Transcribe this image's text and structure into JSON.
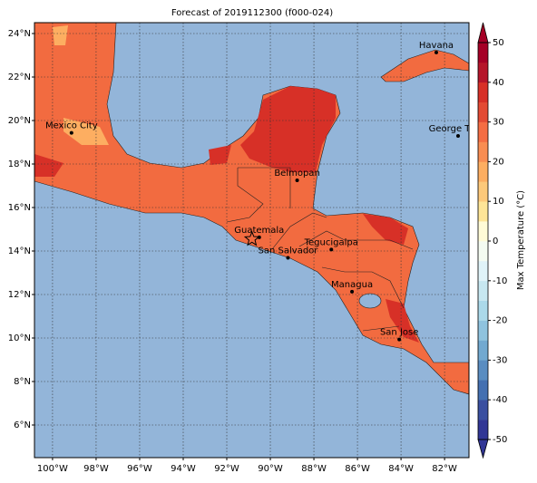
{
  "chart_data": {
    "type": "map",
    "title": "Forecast of 2019112300 (f000-024)",
    "lonlim": [
      -100.83,
      -80.88
    ],
    "latlim": [
      4.5,
      24.5
    ],
    "grid": true,
    "ocean_color": "#93b5d9",
    "xticks": [
      {
        "value": -100,
        "label": "100°W"
      },
      {
        "value": -98,
        "label": "98°W"
      },
      {
        "value": -96,
        "label": "96°W"
      },
      {
        "value": -94,
        "label": "94°W"
      },
      {
        "value": -92,
        "label": "92°W"
      },
      {
        "value": -90,
        "label": "90°W"
      },
      {
        "value": -88,
        "label": "88°W"
      },
      {
        "value": -86,
        "label": "86°W"
      },
      {
        "value": -84,
        "label": "84°W"
      },
      {
        "value": -82,
        "label": "82°W"
      }
    ],
    "yticks": [
      {
        "value": 6,
        "label": "6°N"
      },
      {
        "value": 8,
        "label": "8°N"
      },
      {
        "value": 10,
        "label": "10°N"
      },
      {
        "value": 12,
        "label": "12°N"
      },
      {
        "value": 14,
        "label": "14°N"
      },
      {
        "value": 16,
        "label": "16°N"
      },
      {
        "value": 18,
        "label": "18°N"
      },
      {
        "value": 20,
        "label": "20°N"
      },
      {
        "value": 22,
        "label": "22°N"
      },
      {
        "value": 24,
        "label": "24°N"
      }
    ],
    "cities": [
      {
        "name": "Havana",
        "lon": -82.38,
        "lat": 23.13
      },
      {
        "name": "Mexico City",
        "lon": -99.13,
        "lat": 19.43
      },
      {
        "name": "George Town",
        "lon": -81.38,
        "lat": 19.29
      },
      {
        "name": "Belmopan",
        "lon": -88.77,
        "lat": 17.25
      },
      {
        "name": "Guatemala",
        "lon": -90.51,
        "lat": 14.63
      },
      {
        "name": "San Salvador",
        "lon": -89.19,
        "lat": 13.69
      },
      {
        "name": "Tegucigalpa",
        "lon": -87.2,
        "lat": 14.07
      },
      {
        "name": "Managua",
        "lon": -86.25,
        "lat": 12.13
      },
      {
        "name": "San Jose",
        "lon": -84.08,
        "lat": 9.93
      }
    ],
    "colorbar": {
      "label": "Max Temperature (°C)",
      "lim": [
        -50,
        50
      ],
      "ticks": [
        -50,
        -40,
        -30,
        -20,
        -10,
        0,
        10,
        20,
        30,
        40,
        50
      ],
      "colors": [
        "#313695",
        "#3a4fa0",
        "#4470b1",
        "#5a8dc1",
        "#72a9d0",
        "#8fc3de",
        "#abd9e9",
        "#c7e7f0",
        "#e0f3f8",
        "#f4fbf1",
        "#fffbd7",
        "#fee597",
        "#fdc97a",
        "#fdae61",
        "#f88d52",
        "#f46d43",
        "#e34a33",
        "#d73027",
        "#b5152a",
        "#a50026"
      ]
    }
  }
}
